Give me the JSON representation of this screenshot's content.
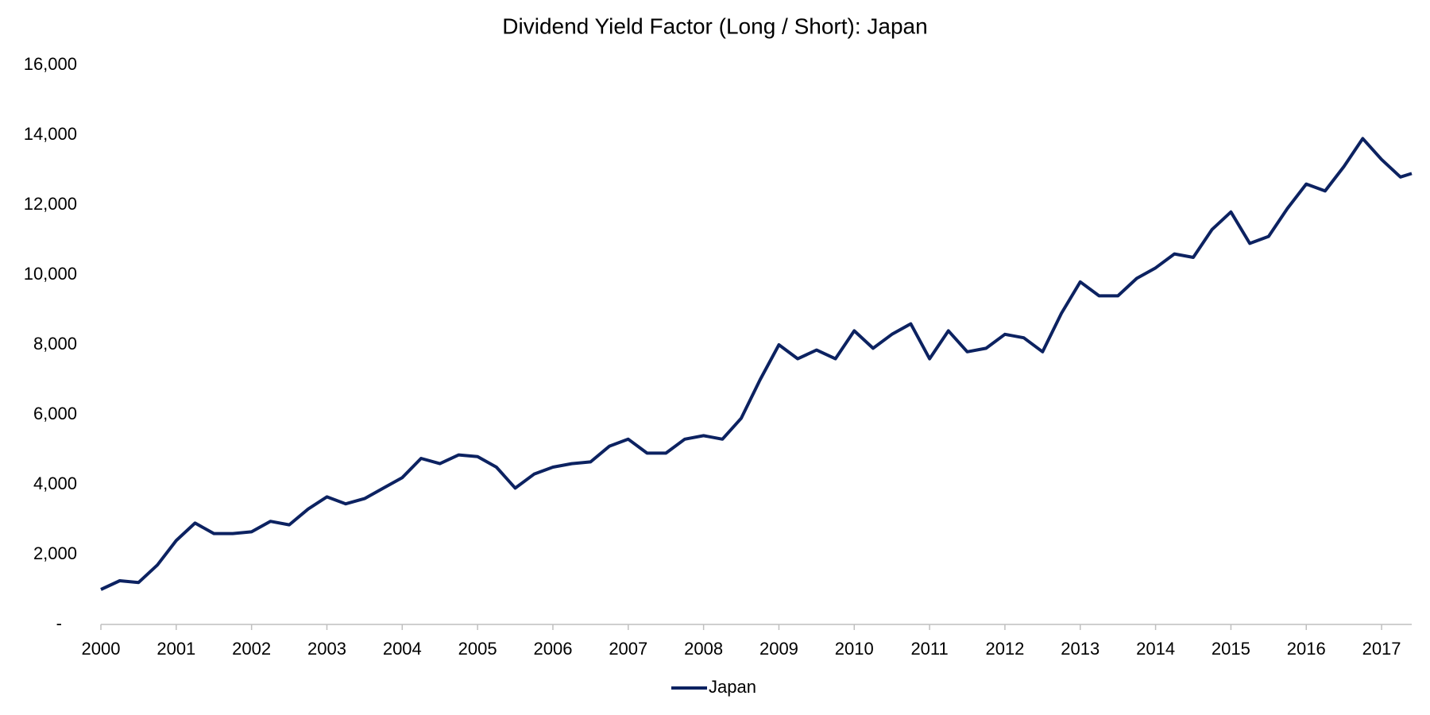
{
  "chart_data": {
    "type": "line",
    "title": "Dividend Yield Factor (Long / Short): Japan",
    "x": [
      2000.0,
      2000.25,
      2000.5,
      2000.75,
      2001.0,
      2001.25,
      2001.5,
      2001.75,
      2002.0,
      2002.25,
      2002.5,
      2002.75,
      2003.0,
      2003.25,
      2003.5,
      2003.75,
      2004.0,
      2004.25,
      2004.5,
      2004.75,
      2005.0,
      2005.25,
      2005.5,
      2005.75,
      2006.0,
      2006.25,
      2006.5,
      2006.75,
      2007.0,
      2007.25,
      2007.5,
      2007.75,
      2008.0,
      2008.25,
      2008.5,
      2008.75,
      2009.0,
      2009.25,
      2009.5,
      2009.75,
      2010.0,
      2010.25,
      2010.5,
      2010.75,
      2011.0,
      2011.25,
      2011.5,
      2011.75,
      2012.0,
      2012.25,
      2012.5,
      2012.75,
      2013.0,
      2013.25,
      2013.5,
      2013.75,
      2014.0,
      2014.25,
      2014.5,
      2014.75,
      2015.0,
      2015.25,
      2015.5,
      2015.75,
      2016.0,
      2016.25,
      2016.5,
      2016.75,
      2017.0,
      2017.25,
      2017.4
    ],
    "series": [
      {
        "name": "Japan",
        "color": "#0c2261",
        "values": [
          1000,
          1250,
          1200,
          1700,
          2400,
          2900,
          2600,
          2600,
          2650,
          2950,
          2850,
          3300,
          3650,
          3450,
          3600,
          3900,
          4200,
          4750,
          4600,
          4850,
          4800,
          4500,
          3900,
          4300,
          4500,
          4600,
          4650,
          5100,
          5300,
          4900,
          4900,
          5300,
          5400,
          5300,
          5900,
          7000,
          8000,
          7600,
          7850,
          7600,
          8400,
          7900,
          8300,
          8600,
          7600,
          8400,
          7800,
          7900,
          8300,
          8200,
          7800,
          8900,
          9800,
          9400,
          9400,
          9900,
          10200,
          10600,
          10500,
          11300,
          11800,
          10900,
          11100,
          11900,
          12600,
          12400,
          13100,
          13900,
          13300,
          12800,
          12900
        ]
      }
    ],
    "xlim": [
      2000,
      2017.4
    ],
    "xticks": [
      2000,
      2001,
      2002,
      2003,
      2004,
      2005,
      2006,
      2007,
      2008,
      2009,
      2010,
      2011,
      2012,
      2013,
      2014,
      2015,
      2016,
      2017
    ],
    "ylim": [
      0,
      16000
    ],
    "yticks": [
      {
        "value": 0,
        "label": "-"
      },
      {
        "value": 2000,
        "label": "2,000"
      },
      {
        "value": 4000,
        "label": "4,000"
      },
      {
        "value": 6000,
        "label": "6,000"
      },
      {
        "value": 8000,
        "label": "8,000"
      },
      {
        "value": 10000,
        "label": "10,000"
      },
      {
        "value": 12000,
        "label": "12,000"
      },
      {
        "value": 14000,
        "label": "14,000"
      },
      {
        "value": 16000,
        "label": "16,000"
      }
    ],
    "legend": "bottom"
  }
}
